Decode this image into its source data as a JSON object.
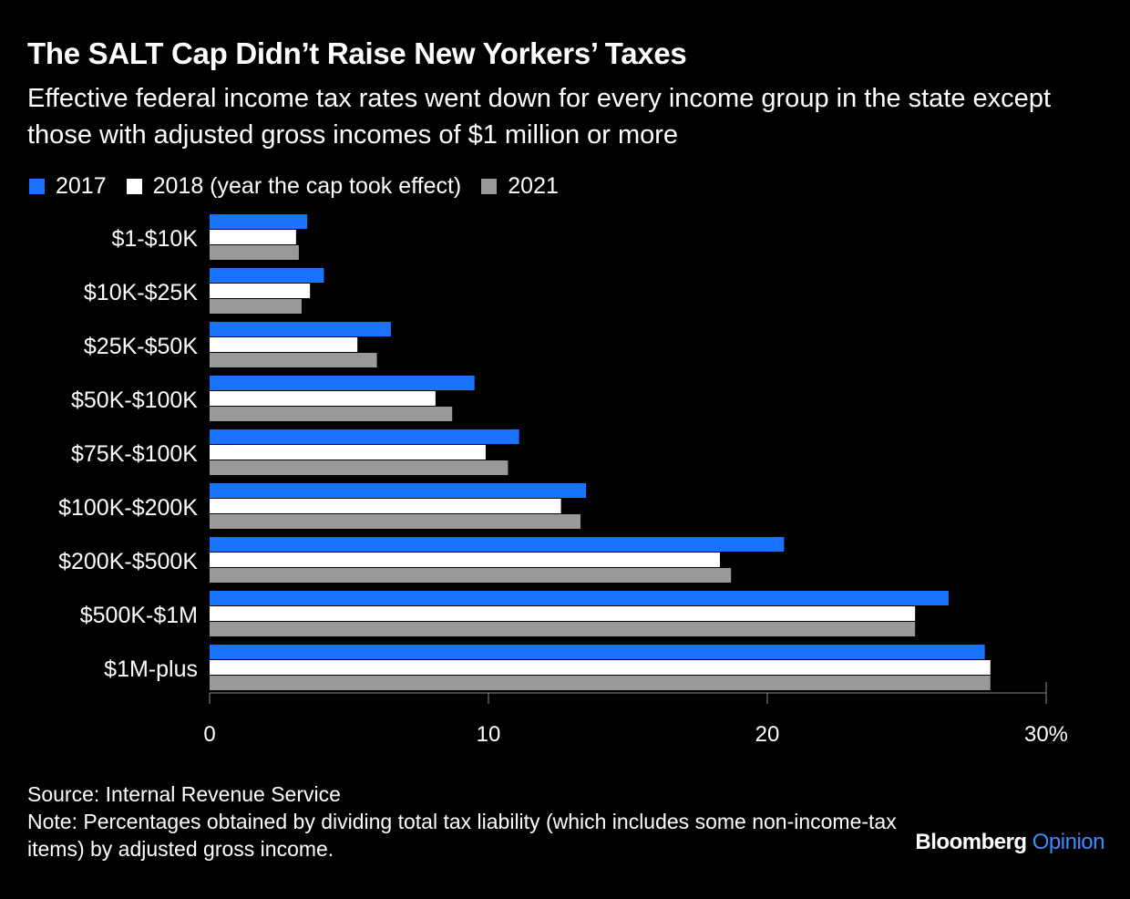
{
  "header": {
    "title": "The SALT Cap Didn’t Raise New Yorkers’ Taxes",
    "subtitle": "Effective federal income tax rates went down for every income group in the state except those with adjusted gross incomes of $1 million or more"
  },
  "chart_data": {
    "type": "bar",
    "orientation": "horizontal",
    "categories": [
      "$1-$10K",
      "$10K-$25K",
      "$25K-$50K",
      "$50K-$100K",
      "$75K-$100K",
      "$100K-$200K",
      "$200K-$500K",
      "$500K-$1M",
      "$1M-plus"
    ],
    "series": [
      {
        "name": "2017",
        "color": "#1a73ff",
        "values": [
          3.5,
          4.1,
          6.5,
          9.5,
          11.1,
          13.5,
          20.6,
          26.5,
          27.8
        ]
      },
      {
        "name": "2018 (year the cap took effect)",
        "color": "#ffffff",
        "values": [
          3.1,
          3.6,
          5.3,
          8.1,
          9.9,
          12.6,
          18.3,
          25.3,
          28.0
        ]
      },
      {
        "name": "2021",
        "color": "#999999",
        "values": [
          3.2,
          3.3,
          6.0,
          8.7,
          10.7,
          13.3,
          18.7,
          25.3,
          28.0
        ]
      }
    ],
    "xlim": [
      0,
      30
    ],
    "xticks": [
      "0",
      "10",
      "20",
      "30%"
    ],
    "xtick_values": [
      0,
      10,
      20,
      30
    ],
    "legend_position": "top-left",
    "grid": false
  },
  "footer": {
    "source": "Source: Internal Revenue Service",
    "note": "Note: Percentages obtained by dividing total tax liability (which includes some non-income-tax items) by adjusted gross income."
  },
  "brand": {
    "name": "Bloomberg",
    "section": "Opinion"
  }
}
